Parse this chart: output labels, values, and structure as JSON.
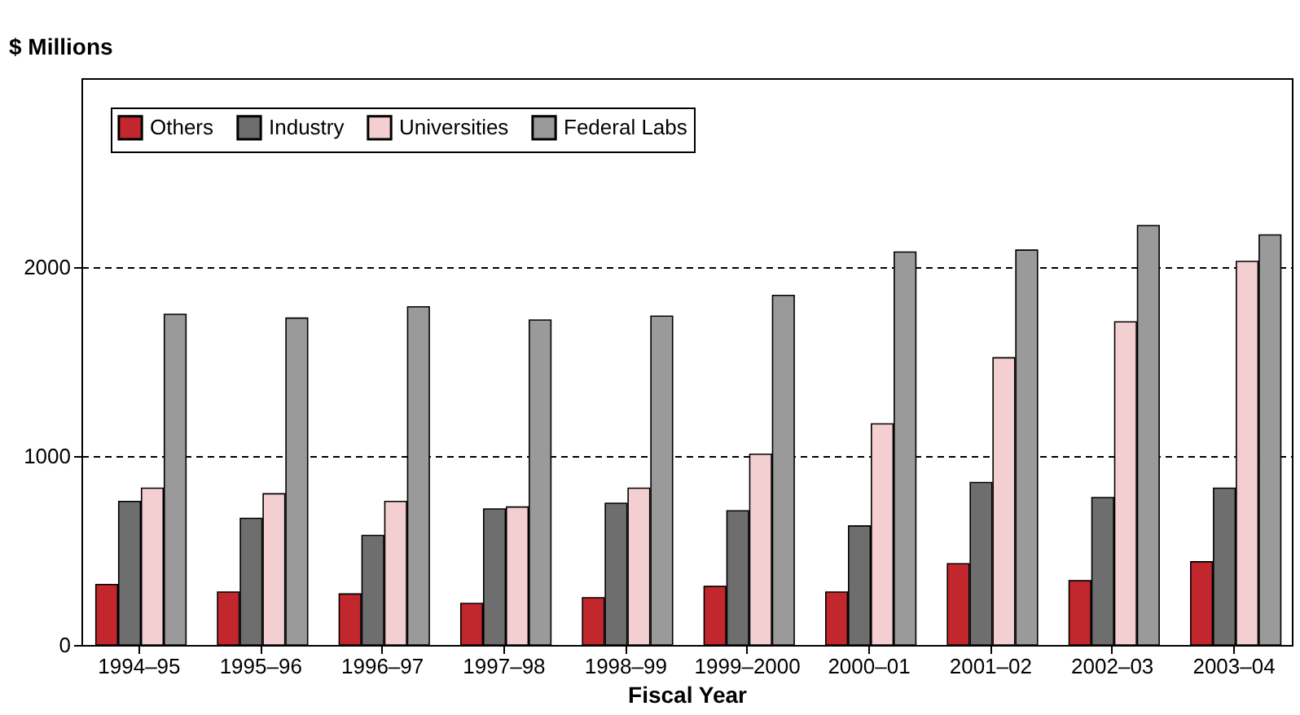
{
  "chart_data": {
    "type": "bar",
    "ylabel": "$ Millions",
    "xlabel": "Fiscal Year",
    "categories": [
      "1994–95",
      "1995–96",
      "1996–97",
      "1997–98",
      "1998–99",
      "1999–2000",
      "2000–01",
      "2001–02",
      "2002–03",
      "2003–04"
    ],
    "series": [
      {
        "name": "Others",
        "color": "#c1272d",
        "values": [
          320,
          280,
          270,
          220,
          250,
          310,
          280,
          430,
          340,
          440
        ]
      },
      {
        "name": "Industry",
        "color": "#6e6e6e",
        "values": [
          760,
          670,
          580,
          720,
          750,
          710,
          630,
          860,
          780,
          830
        ]
      },
      {
        "name": "Universities",
        "color": "#f4cfd2",
        "values": [
          830,
          800,
          760,
          730,
          830,
          1010,
          1170,
          1520,
          1710,
          2030
        ]
      },
      {
        "name": "Federal Labs",
        "color": "#9a9a9a",
        "values": [
          1750,
          1730,
          1790,
          1720,
          1740,
          1850,
          2080,
          2090,
          2220,
          2170
        ]
      }
    ],
    "ylim": [
      0,
      3000
    ],
    "yticks": [
      0,
      1000,
      2000
    ],
    "grid": "y",
    "legend": "top left"
  }
}
